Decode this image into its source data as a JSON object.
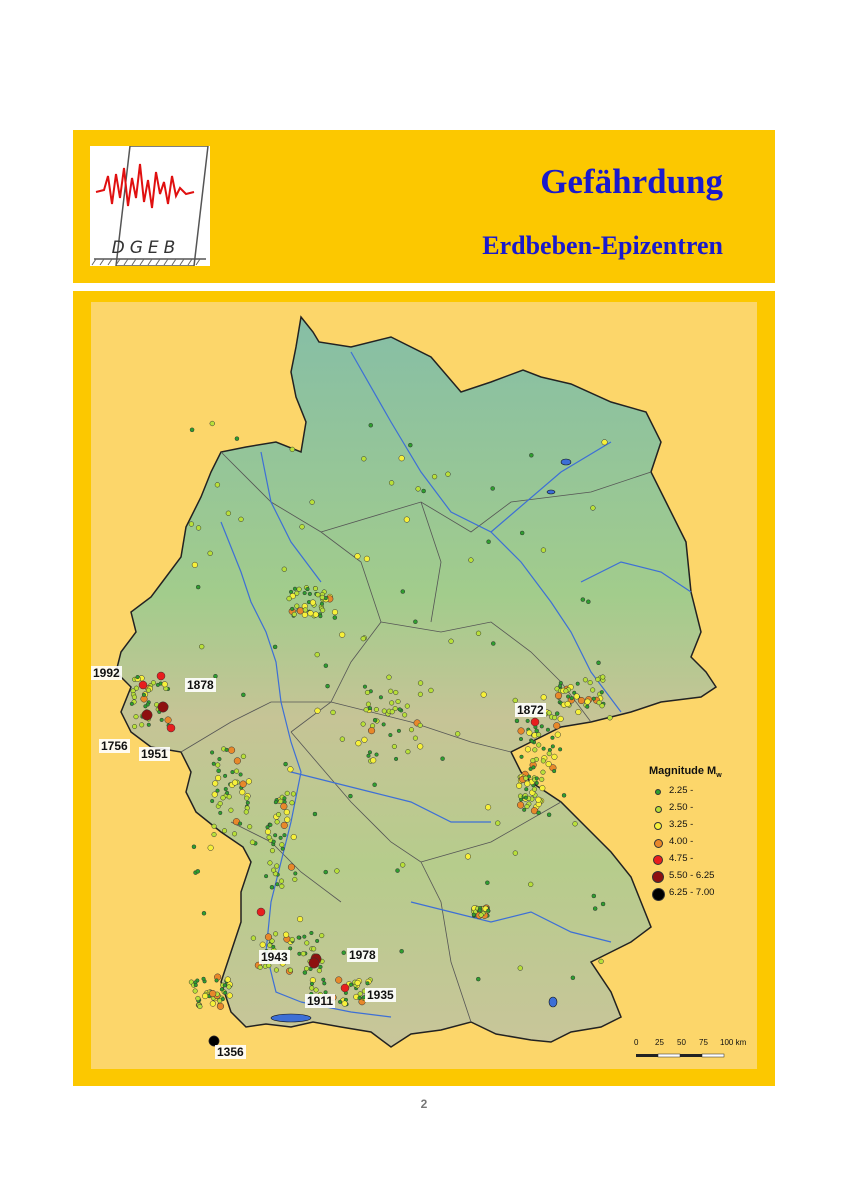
{
  "header": {
    "logo_text": "DGEB",
    "title": "Gefährdung",
    "subtitle": "Erdbeben-Epizentren"
  },
  "map": {
    "legend": {
      "title": "Magnitude M",
      "title_subscript": "w",
      "items": [
        {
          "label": "2.25 -",
          "color": "#2e9e2e"
        },
        {
          "label": "2.50 -",
          "color": "#b8e03a"
        },
        {
          "label": "3.25 -",
          "color": "#f6f03a"
        },
        {
          "label": "4.00 -",
          "color": "#e8882a"
        },
        {
          "label": "4.75 -",
          "color": "#e81e1e"
        },
        {
          "label": "5.50 - 6.25",
          "color": "#8e1010"
        },
        {
          "label": "6.25 - 7.00",
          "color": "#000000"
        }
      ]
    },
    "scale_bar": {
      "ticks": [
        "0",
        "25",
        "50",
        "75",
        "100 km"
      ]
    },
    "historic_quakes": [
      "1992",
      "1878",
      "1756",
      "1951",
      "1872",
      "1943",
      "1978",
      "1911",
      "1935",
      "1356"
    ],
    "colors": {
      "land": "#9cc78f",
      "lowland": "#8ec2a4",
      "highland": "#c2bf98",
      "background": "#fcd66a",
      "frame": "#fcc800",
      "river": "#3d6fd6",
      "title": "#1a1acc"
    }
  },
  "footer": {
    "page_number": "2"
  }
}
